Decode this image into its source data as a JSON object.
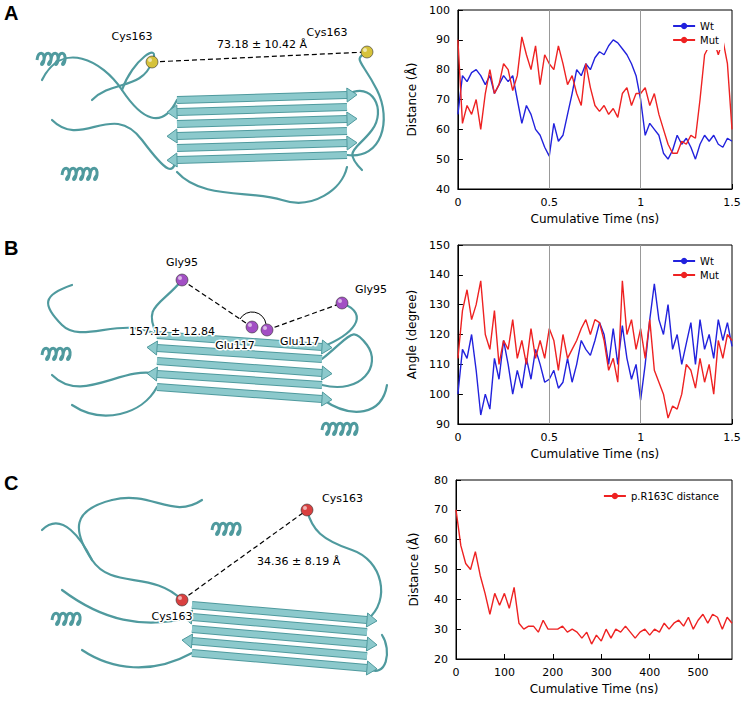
{
  "panels": [
    {
      "letter": "A",
      "structure": {
        "labels": [
          "Cys163",
          "Cys163"
        ],
        "measurement": "73.18 ± 10.42 Å"
      }
    },
    {
      "letter": "B",
      "structure": {
        "labels": [
          "Gly95",
          "Glu117",
          "Glu117",
          "Gly95"
        ],
        "measurement": "157.12 ± 12.84"
      }
    },
    {
      "letter": "C",
      "structure": {
        "labels": [
          "Cys163",
          "Cys163"
        ],
        "measurement": "34.36 ± 8.19 Å"
      }
    }
  ],
  "chart_data": [
    {
      "type": "line",
      "x_label": "Cumulative Time (ns)",
      "y_label": "Distance (Å)",
      "xlim": [
        0,
        1.5
      ],
      "xticks": [
        0,
        0.5,
        1,
        1.5
      ],
      "ylim": [
        40,
        100
      ],
      "yticks": [
        40,
        50,
        60,
        70,
        80,
        90,
        100
      ],
      "grid": false,
      "legend": "upper right",
      "vertical_lines": [
        0.5,
        1
      ],
      "x": [
        0,
        0.025,
        0.05,
        0.075,
        0.1,
        0.125,
        0.15,
        0.175,
        0.2,
        0.225,
        0.25,
        0.275,
        0.3,
        0.325,
        0.35,
        0.375,
        0.4,
        0.425,
        0.45,
        0.475,
        0.5,
        0.525,
        0.55,
        0.575,
        0.6,
        0.625,
        0.65,
        0.675,
        0.7,
        0.725,
        0.75,
        0.775,
        0.8,
        0.825,
        0.85,
        0.875,
        0.9,
        0.925,
        0.95,
        0.975,
        1,
        1.025,
        1.05,
        1.075,
        1.1,
        1.125,
        1.15,
        1.175,
        1.2,
        1.225,
        1.25,
        1.275,
        1.3,
        1.325,
        1.35,
        1.375,
        1.4,
        1.425,
        1.45,
        1.475,
        1.5
      ],
      "series": [
        {
          "name": "Wt",
          "color": "#2222dd",
          "values": [
            65,
            78,
            76,
            79,
            80,
            78,
            75,
            78,
            72,
            75,
            78,
            76,
            78,
            70,
            62,
            68,
            65,
            60,
            58,
            54,
            51,
            62,
            56,
            58,
            65,
            72,
            80,
            78,
            82,
            80,
            84,
            86,
            85,
            88,
            90,
            89,
            87,
            85,
            82,
            78,
            70,
            58,
            62,
            60,
            58,
            52,
            50,
            53,
            58,
            55,
            57,
            54,
            50,
            55,
            58,
            56,
            58,
            55,
            54,
            57,
            56
          ]
        },
        {
          "name": "Mut",
          "color": "#ee2222",
          "values": [
            90,
            62,
            68,
            65,
            70,
            60,
            72,
            80,
            72,
            75,
            82,
            80,
            73,
            78,
            91,
            85,
            80,
            88,
            75,
            85,
            82,
            80,
            88,
            82,
            75,
            78,
            72,
            68,
            82,
            74,
            68,
            66,
            68,
            65,
            67,
            64,
            72,
            74,
            68,
            72,
            72,
            74,
            68,
            72,
            65,
            60,
            55,
            52,
            52,
            56,
            55,
            58,
            57,
            70,
            85,
            88,
            90,
            85,
            90,
            82,
            60
          ]
        }
      ]
    },
    {
      "type": "line",
      "x_label": "Cumulative Time (ns)",
      "y_label": "Angle (degree)",
      "xlim": [
        0,
        1.5
      ],
      "xticks": [
        0,
        0.5,
        1,
        1.5
      ],
      "ylim": [
        90,
        150
      ],
      "yticks": [
        90,
        100,
        110,
        120,
        130,
        140,
        150
      ],
      "grid": false,
      "legend": "upper right",
      "vertical_lines": [
        0.5,
        1
      ],
      "x": [
        0,
        0.025,
        0.05,
        0.075,
        0.1,
        0.125,
        0.15,
        0.175,
        0.2,
        0.225,
        0.25,
        0.275,
        0.3,
        0.325,
        0.35,
        0.375,
        0.4,
        0.425,
        0.45,
        0.475,
        0.5,
        0.525,
        0.55,
        0.575,
        0.6,
        0.625,
        0.65,
        0.675,
        0.7,
        0.725,
        0.75,
        0.775,
        0.8,
        0.825,
        0.85,
        0.875,
        0.9,
        0.925,
        0.95,
        0.975,
        1,
        1.025,
        1.05,
        1.075,
        1.1,
        1.125,
        1.15,
        1.175,
        1.2,
        1.225,
        1.25,
        1.275,
        1.3,
        1.325,
        1.35,
        1.375,
        1.4,
        1.425,
        1.45,
        1.475,
        1.5
      ],
      "series": [
        {
          "name": "Wt",
          "color": "#2222dd",
          "values": [
            100,
            115,
            112,
            120,
            108,
            93,
            100,
            95,
            112,
            105,
            118,
            110,
            100,
            108,
            102,
            112,
            105,
            115,
            110,
            104,
            105,
            108,
            102,
            104,
            112,
            104,
            110,
            118,
            115,
            113,
            118,
            124,
            120,
            110,
            122,
            110,
            123,
            112,
            105,
            110,
            98,
            110,
            125,
            137,
            125,
            120,
            130,
            115,
            120,
            110,
            117,
            124,
            110,
            125,
            115,
            120,
            112,
            125,
            118,
            124,
            116
          ]
        },
        {
          "name": "Mut",
          "color": "#ee2222",
          "values": [
            112,
            128,
            135,
            125,
            130,
            138,
            120,
            115,
            128,
            110,
            118,
            115,
            125,
            112,
            118,
            110,
            122,
            112,
            118,
            112,
            122,
            118,
            108,
            120,
            112,
            115,
            118,
            122,
            125,
            120,
            125,
            124,
            118,
            108,
            112,
            104,
            138,
            120,
            125,
            115,
            122,
            112,
            125,
            108,
            104,
            100,
            92,
            96,
            95,
            100,
            110,
            108,
            102,
            112,
            104,
            110,
            100,
            118,
            112,
            120,
            118
          ]
        }
      ]
    },
    {
      "type": "line",
      "x_label": "Cumulative Time (ns)",
      "y_label": "Distance (Å)",
      "xlim": [
        0,
        570
      ],
      "xticks": [
        0,
        100,
        200,
        300,
        400,
        500
      ],
      "ylim": [
        20,
        80
      ],
      "yticks": [
        20,
        30,
        40,
        50,
        60,
        70,
        80
      ],
      "grid": false,
      "legend": "upper right",
      "x": [
        0,
        10,
        20,
        30,
        40,
        50,
        60,
        70,
        80,
        90,
        100,
        110,
        120,
        130,
        140,
        150,
        160,
        170,
        180,
        190,
        200,
        210,
        220,
        230,
        240,
        250,
        260,
        270,
        280,
        290,
        300,
        310,
        320,
        330,
        340,
        350,
        360,
        370,
        380,
        390,
        400,
        410,
        420,
        430,
        440,
        450,
        460,
        470,
        480,
        490,
        500,
        510,
        520,
        530,
        540,
        550,
        560,
        570
      ],
      "series": [
        {
          "name": "p.R163C distance",
          "color": "#ee2222",
          "values": [
            70,
            58,
            52,
            50,
            56,
            48,
            42,
            35,
            42,
            38,
            42,
            37,
            44,
            32,
            30,
            31,
            31,
            29,
            33,
            30,
            30,
            30,
            31,
            29,
            30,
            29,
            27,
            29,
            25,
            28,
            26,
            30,
            27,
            30,
            29,
            31,
            29,
            27,
            29,
            30,
            28,
            30,
            29,
            32,
            30,
            32,
            33,
            31,
            34,
            30,
            33,
            35,
            32,
            35,
            34,
            30,
            34,
            32
          ]
        }
      ]
    }
  ]
}
